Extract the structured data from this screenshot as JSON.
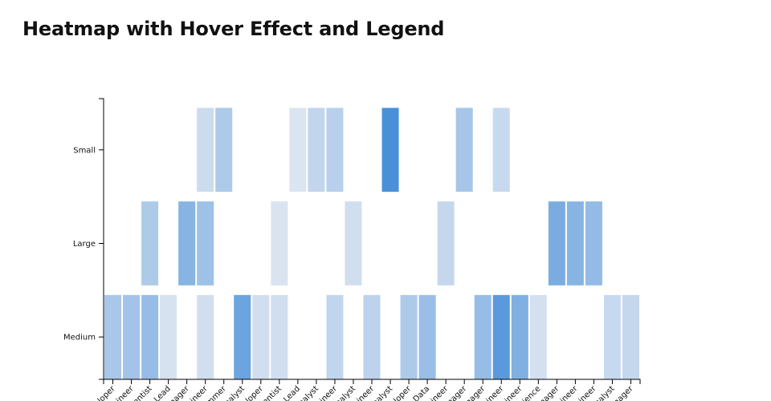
{
  "title": "Heatmap with Hover Effect and Legend",
  "chart_data": {
    "type": "heatmap",
    "title": "Heatmap with Hover Effect and Legend",
    "color_scale": {
      "low": "#e3e9f2",
      "high": "#4a90d9"
    },
    "y_categories": [
      "Small",
      "Large",
      "Medium"
    ],
    "x_categories": [
      "eloper",
      "gineer",
      "entist",
      "Lead",
      "nager",
      "gineer",
      "ammer",
      "nalyst",
      "eloper",
      "entist",
      "Lead",
      "nalyst",
      "gineer",
      "nalyst",
      "gineer",
      "nalyst",
      "eloper",
      "Data",
      "gineer",
      "nager",
      "nager",
      "gineer",
      "gineer",
      "cience",
      "nager",
      "gineer",
      "gineer",
      "nalyst",
      "nager"
    ],
    "cells": [
      {
        "x": 5,
        "y": "Small",
        "value": 0.15
      },
      {
        "x": 6,
        "y": "Small",
        "value": 0.35
      },
      {
        "x": 10,
        "y": "Small",
        "value": 0.05
      },
      {
        "x": 11,
        "y": "Small",
        "value": 0.22
      },
      {
        "x": 12,
        "y": "Small",
        "value": 0.28
      },
      {
        "x": 15,
        "y": "Small",
        "value": 1.0
      },
      {
        "x": 19,
        "y": "Small",
        "value": 0.4
      },
      {
        "x": 21,
        "y": "Small",
        "value": 0.18
      },
      {
        "x": 2,
        "y": "Large",
        "value": 0.35
      },
      {
        "x": 4,
        "y": "Large",
        "value": 0.6
      },
      {
        "x": 5,
        "y": "Large",
        "value": 0.45
      },
      {
        "x": 9,
        "y": "Large",
        "value": 0.06
      },
      {
        "x": 13,
        "y": "Large",
        "value": 0.12
      },
      {
        "x": 18,
        "y": "Large",
        "value": 0.2
      },
      {
        "x": 24,
        "y": "Large",
        "value": 0.68
      },
      {
        "x": 25,
        "y": "Large",
        "value": 0.6
      },
      {
        "x": 26,
        "y": "Large",
        "value": 0.52
      },
      {
        "x": 0,
        "y": "Medium",
        "value": 0.38
      },
      {
        "x": 1,
        "y": "Medium",
        "value": 0.42
      },
      {
        "x": 2,
        "y": "Medium",
        "value": 0.5
      },
      {
        "x": 3,
        "y": "Medium",
        "value": 0.08
      },
      {
        "x": 5,
        "y": "Medium",
        "value": 0.12
      },
      {
        "x": 7,
        "y": "Medium",
        "value": 0.78
      },
      {
        "x": 8,
        "y": "Medium",
        "value": 0.12
      },
      {
        "x": 9,
        "y": "Medium",
        "value": 0.12
      },
      {
        "x": 12,
        "y": "Medium",
        "value": 0.22
      },
      {
        "x": 14,
        "y": "Medium",
        "value": 0.25
      },
      {
        "x": 16,
        "y": "Medium",
        "value": 0.35
      },
      {
        "x": 17,
        "y": "Medium",
        "value": 0.48
      },
      {
        "x": 20,
        "y": "Medium",
        "value": 0.5
      },
      {
        "x": 21,
        "y": "Medium",
        "value": 0.9
      },
      {
        "x": 22,
        "y": "Medium",
        "value": 0.65
      },
      {
        "x": 23,
        "y": "Medium",
        "value": 0.1
      },
      {
        "x": 27,
        "y": "Medium",
        "value": 0.18
      },
      {
        "x": 28,
        "y": "Medium",
        "value": 0.2
      }
    ],
    "grid": false,
    "legend": "none"
  }
}
